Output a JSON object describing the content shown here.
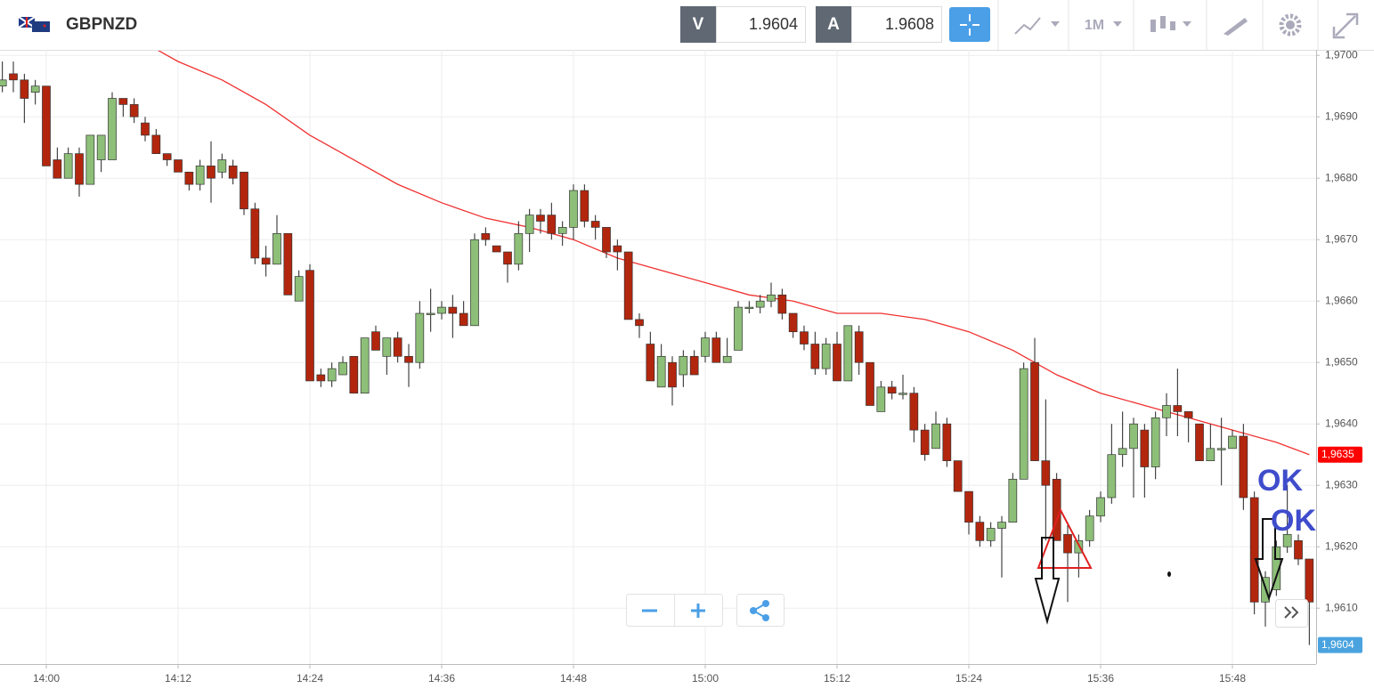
{
  "header": {
    "symbol": "GBPNZD",
    "bid_label": "V",
    "bid": 1.9604,
    "ask_label": "A",
    "ask": 1.9608,
    "timeframe": "1M"
  },
  "chart_data": {
    "type": "candlestick",
    "up_color": "#8dbf78",
    "down_color": "#b3260e",
    "grid": true,
    "x": [
      "13:56",
      "13:57",
      "13:58",
      "13:59",
      "14:00",
      "14:01",
      "14:02",
      "14:03",
      "14:04",
      "14:05",
      "14:06",
      "14:07",
      "14:08",
      "14:09",
      "14:10",
      "14:11",
      "14:12",
      "14:13",
      "14:14",
      "14:15",
      "14:16",
      "14:17",
      "14:18",
      "14:19",
      "14:20",
      "14:21",
      "14:22",
      "14:23",
      "14:24",
      "14:25",
      "14:26",
      "14:27",
      "14:28",
      "14:29",
      "14:30",
      "14:31",
      "14:32",
      "14:33",
      "14:34",
      "14:35",
      "14:36",
      "14:37",
      "14:38",
      "14:39",
      "14:40",
      "14:41",
      "14:42",
      "14:43",
      "14:44",
      "14:45",
      "14:46",
      "14:47",
      "14:48",
      "14:49",
      "14:50",
      "14:51",
      "14:52",
      "14:53",
      "14:54",
      "14:55",
      "14:56",
      "14:57",
      "14:58",
      "14:59",
      "15:00",
      "15:01",
      "15:02",
      "15:03",
      "15:04",
      "15:05",
      "15:06",
      "15:07",
      "15:08",
      "15:09",
      "15:10",
      "15:11",
      "15:12",
      "15:13",
      "15:14",
      "15:15",
      "15:16",
      "15:17",
      "15:18",
      "15:19",
      "15:20",
      "15:21",
      "15:22",
      "15:23",
      "15:24",
      "15:25",
      "15:26",
      "15:27",
      "15:28",
      "15:29",
      "15:30",
      "15:31",
      "15:32",
      "15:33",
      "15:34",
      "15:35",
      "15:36",
      "15:37",
      "15:38",
      "15:39",
      "15:40",
      "15:41",
      "15:42",
      "15:43",
      "15:44",
      "15:45",
      "15:46",
      "15:47",
      "15:48",
      "15:49",
      "15:50",
      "15:51",
      "15:52",
      "15:53",
      "15:54",
      "15:55"
    ],
    "ohlc": [
      [
        1.9695,
        1.9699,
        1.9694,
        1.9696
      ],
      [
        1.9697,
        1.9699,
        1.9694,
        1.9696
      ],
      [
        1.9696,
        1.9697,
        1.9689,
        1.9693
      ],
      [
        1.9694,
        1.9696,
        1.9692,
        1.9695
      ],
      [
        1.9695,
        1.9695,
        1.9682,
        1.9682
      ],
      [
        1.9683,
        1.9685,
        1.968,
        1.968
      ],
      [
        1.968,
        1.9685,
        1.968,
        1.9684
      ],
      [
        1.9684,
        1.9685,
        1.9677,
        1.9679
      ],
      [
        1.9679,
        1.9687,
        1.9679,
        1.9687
      ],
      [
        1.9683,
        1.9687,
        1.9681,
        1.9687
      ],
      [
        1.9683,
        1.9694,
        1.9683,
        1.9693
      ],
      [
        1.9693,
        1.9693,
        1.969,
        1.9692
      ],
      [
        1.9692,
        1.9693,
        1.9689,
        1.969
      ],
      [
        1.9689,
        1.969,
        1.9686,
        1.9687
      ],
      [
        1.9687,
        1.9688,
        1.9684,
        1.9684
      ],
      [
        1.9684,
        1.9684,
        1.9682,
        1.9683
      ],
      [
        1.9683,
        1.9683,
        1.9681,
        1.9681
      ],
      [
        1.9681,
        1.9681,
        1.9678,
        1.9679
      ],
      [
        1.9679,
        1.9683,
        1.9678,
        1.9682
      ],
      [
        1.9682,
        1.9686,
        1.9676,
        1.968
      ],
      [
        1.9681,
        1.9684,
        1.968,
        1.9683
      ],
      [
        1.9682,
        1.9683,
        1.9679,
        1.968
      ],
      [
        1.9681,
        1.9681,
        1.9674,
        1.9675
      ],
      [
        1.9675,
        1.9676,
        1.9666,
        1.9667
      ],
      [
        1.9667,
        1.9669,
        1.9664,
        1.9666
      ],
      [
        1.9666,
        1.9674,
        1.9666,
        1.9671
      ],
      [
        1.9671,
        1.9671,
        1.9661,
        1.9661
      ],
      [
        1.966,
        1.9665,
        1.966,
        1.9664
      ],
      [
        1.9665,
        1.9666,
        1.9647,
        1.9647
      ],
      [
        1.9648,
        1.9649,
        1.9646,
        1.9647
      ],
      [
        1.9647,
        1.965,
        1.9646,
        1.9649
      ],
      [
        1.9648,
        1.9651,
        1.9648,
        1.965
      ],
      [
        1.9651,
        1.9651,
        1.9645,
        1.9645
      ],
      [
        1.9645,
        1.9654,
        1.9645,
        1.9654
      ],
      [
        1.9655,
        1.9656,
        1.9652,
        1.9652
      ],
      [
        1.9651,
        1.9654,
        1.9648,
        1.9654
      ],
      [
        1.9654,
        1.9655,
        1.965,
        1.9651
      ],
      [
        1.9651,
        1.9653,
        1.9646,
        1.965
      ],
      [
        1.965,
        1.966,
        1.9649,
        1.9658
      ],
      [
        1.9658,
        1.9662,
        1.9655,
        1.9658
      ],
      [
        1.9658,
        1.966,
        1.9657,
        1.9659
      ],
      [
        1.9659,
        1.9661,
        1.9654,
        1.9658
      ],
      [
        1.9658,
        1.966,
        1.9656,
        1.9656
      ],
      [
        1.9656,
        1.9671,
        1.9656,
        1.967
      ],
      [
        1.9671,
        1.9672,
        1.9669,
        1.967
      ],
      [
        1.9669,
        1.9669,
        1.9668,
        1.9668
      ],
      [
        1.9668,
        1.9668,
        1.9663,
        1.9666
      ],
      [
        1.9666,
        1.9673,
        1.9665,
        1.9671
      ],
      [
        1.9671,
        1.9675,
        1.9668,
        1.9674
      ],
      [
        1.9674,
        1.9675,
        1.9671,
        1.9673
      ],
      [
        1.9674,
        1.9676,
        1.967,
        1.9671
      ],
      [
        1.9671,
        1.9673,
        1.9669,
        1.9672
      ],
      [
        1.9672,
        1.9679,
        1.967,
        1.9678
      ],
      [
        1.9678,
        1.9679,
        1.9672,
        1.9673
      ],
      [
        1.9673,
        1.9674,
        1.967,
        1.9672
      ],
      [
        1.9672,
        1.9672,
        1.9667,
        1.9668
      ],
      [
        1.9669,
        1.967,
        1.9665,
        1.9668
      ],
      [
        1.9668,
        1.9668,
        1.9657,
        1.9657
      ],
      [
        1.9657,
        1.9658,
        1.9654,
        1.9656
      ],
      [
        1.9653,
        1.9655,
        1.9647,
        1.9647
      ],
      [
        1.9646,
        1.9653,
        1.9646,
        1.9651
      ],
      [
        1.965,
        1.9651,
        1.9643,
        1.9646
      ],
      [
        1.9648,
        1.9652,
        1.9646,
        1.9651
      ],
      [
        1.9651,
        1.9652,
        1.9648,
        1.9648
      ],
      [
        1.9651,
        1.9655,
        1.965,
        1.9654
      ],
      [
        1.9654,
        1.9655,
        1.965,
        1.965
      ],
      [
        1.965,
        1.9654,
        1.965,
        1.9651
      ],
      [
        1.9652,
        1.966,
        1.9652,
        1.9659
      ],
      [
        1.9659,
        1.966,
        1.9658,
        1.9659
      ],
      [
        1.9659,
        1.9661,
        1.9658,
        1.966
      ],
      [
        1.966,
        1.9663,
        1.9659,
        1.9661
      ],
      [
        1.9661,
        1.9662,
        1.9657,
        1.9658
      ],
      [
        1.9658,
        1.9658,
        1.9654,
        1.9655
      ],
      [
        1.9655,
        1.9656,
        1.9652,
        1.9653
      ],
      [
        1.9653,
        1.9655,
        1.9648,
        1.9649
      ],
      [
        1.9649,
        1.9654,
        1.9648,
        1.9653
      ],
      [
        1.9653,
        1.9655,
        1.9647,
        1.9647
      ],
      [
        1.9647,
        1.9656,
        1.9647,
        1.9656
      ],
      [
        1.9655,
        1.9656,
        1.9648,
        1.965
      ],
      [
        1.965,
        1.965,
        1.9643,
        1.9643
      ],
      [
        1.9642,
        1.9647,
        1.9642,
        1.9646
      ],
      [
        1.9646,
        1.9647,
        1.9644,
        1.9645
      ],
      [
        1.9645,
        1.9648,
        1.9644,
        1.9645
      ],
      [
        1.9645,
        1.9646,
        1.9637,
        1.9639
      ],
      [
        1.9639,
        1.964,
        1.9634,
        1.9635
      ],
      [
        1.9636,
        1.9642,
        1.9636,
        1.964
      ],
      [
        1.964,
        1.9641,
        1.9633,
        1.9634
      ],
      [
        1.9634,
        1.9634,
        1.9629,
        1.9629
      ],
      [
        1.9629,
        1.9629,
        1.9622,
        1.9624
      ],
      [
        1.9624,
        1.9625,
        1.962,
        1.9621
      ],
      [
        1.9621,
        1.9624,
        1.962,
        1.9623
      ],
      [
        1.9623,
        1.9625,
        1.9615,
        1.9624
      ],
      [
        1.9624,
        1.9632,
        1.9624,
        1.9631
      ],
      [
        1.9631,
        1.965,
        1.9631,
        1.9649
      ],
      [
        1.965,
        1.9654,
        1.9634,
        1.9634
      ],
      [
        1.9634,
        1.9644,
        1.9621,
        1.963
      ],
      [
        1.9631,
        1.9632,
        1.9621,
        1.9621
      ],
      [
        1.9622,
        1.9624,
        1.9611,
        1.9619
      ],
      [
        1.9619,
        1.9622,
        1.9615,
        1.9621
      ],
      [
        1.9621,
        1.9626,
        1.962,
        1.9625
      ],
      [
        1.9625,
        1.9629,
        1.9624,
        1.9628
      ],
      [
        1.9628,
        1.964,
        1.9627,
        1.9635
      ],
      [
        1.9635,
        1.9642,
        1.9633,
        1.9636
      ],
      [
        1.9636,
        1.9641,
        1.9628,
        1.964
      ],
      [
        1.9639,
        1.964,
        1.9628,
        1.9633
      ],
      [
        1.9633,
        1.9642,
        1.9631,
        1.9641
      ],
      [
        1.9641,
        1.9645,
        1.9638,
        1.9643
      ],
      [
        1.9643,
        1.9649,
        1.9638,
        1.9642
      ],
      [
        1.9642,
        1.9642,
        1.9637,
        1.9641
      ],
      [
        1.964,
        1.964,
        1.9634,
        1.9634
      ],
      [
        1.9634,
        1.964,
        1.9634,
        1.9636
      ],
      [
        1.9636,
        1.9641,
        1.963,
        1.9636
      ],
      [
        1.9636,
        1.9639,
        1.9636,
        1.9638
      ],
      [
        1.9638,
        1.964,
        1.9626,
        1.9628
      ],
      [
        1.9628,
        1.9629,
        1.9609,
        1.9611
      ],
      [
        1.9611,
        1.9616,
        1.9607,
        1.9615
      ],
      [
        1.9613,
        1.9621,
        1.9612,
        1.962
      ],
      [
        1.962,
        1.963,
        1.9619,
        1.9622
      ],
      [
        1.9621,
        1.9622,
        1.9617,
        1.9618
      ],
      [
        1.9618,
        1.9618,
        1.9604,
        1.9611
      ]
    ],
    "moving_average": {
      "color": "#f03030",
      "x": [
        "14:10",
        "14:12",
        "14:16",
        "14:20",
        "14:24",
        "14:28",
        "14:32",
        "14:36",
        "14:40",
        "14:44",
        "14:48",
        "14:52",
        "14:56",
        "15:00",
        "15:04",
        "15:08",
        "15:12",
        "15:16",
        "15:20",
        "15:24",
        "15:28",
        "15:32",
        "15:36",
        "15:40",
        "15:44",
        "15:48",
        "15:52",
        "15:55"
      ],
      "values": [
        1.9701,
        1.9699,
        1.9696,
        1.9692,
        1.9687,
        1.9683,
        1.9679,
        1.9676,
        1.96735,
        1.9672,
        1.967,
        1.9667,
        1.9665,
        1.9663,
        1.9661,
        1.966,
        1.9658,
        1.9658,
        1.9657,
        1.9655,
        1.9652,
        1.9648,
        1.9645,
        1.9643,
        1.9641,
        1.9639,
        1.9637,
        1.9635
      ]
    },
    "ylim": [
      1.96009,
      1.97009
    ],
    "yticks": [
      {
        "value": 1.961,
        "label": "1,9610"
      },
      {
        "value": 1.962,
        "label": "1,9620"
      },
      {
        "value": 1.963,
        "label": "1,9630"
      },
      {
        "value": 1.964,
        "label": "1,9640"
      },
      {
        "value": 1.965,
        "label": "1,9650"
      },
      {
        "value": 1.966,
        "label": "1,9660"
      },
      {
        "value": 1.967,
        "label": "1,9670"
      },
      {
        "value": 1.968,
        "label": "1,9680"
      },
      {
        "value": 1.969,
        "label": "1,9690"
      },
      {
        "value": 1.97,
        "label": "1,9700"
      }
    ],
    "xticks": [
      "14:00",
      "14:12",
      "14:24",
      "14:36",
      "14:48",
      "15:00",
      "15:12",
      "15:24",
      "15:36",
      "15:48"
    ],
    "price_labels": [
      {
        "value": 1.9635,
        "label": "1,9635",
        "color": "#ff0000"
      },
      {
        "value": 1.9604,
        "label": "1,9604",
        "color": "#4aa3df"
      }
    ],
    "annotations": [
      "OK",
      "OK"
    ]
  }
}
